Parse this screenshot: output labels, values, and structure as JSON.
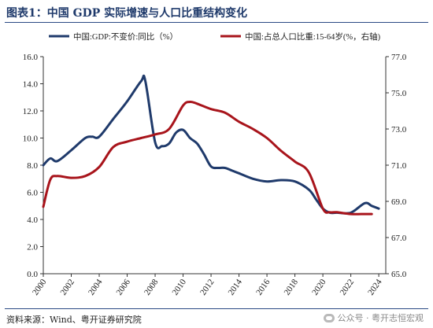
{
  "figure_title": "图表1：中国 GDP 实际增速与人口比重结构变化",
  "source_text": "资料来源：Wind、粤开证券研究院",
  "watermark_text": "公众号 · 粤开志恒宏观",
  "colors": {
    "series1": "#1f3a6b",
    "series2": "#a8141b",
    "title": "#1f3a6b"
  },
  "chart_data": {
    "type": "line",
    "grid": false,
    "legend_position": "top",
    "x_ticks": [
      "2000",
      "2002",
      "2004",
      "2006",
      "2008",
      "2010",
      "2012",
      "2014",
      "2016",
      "2018",
      "2020",
      "2022",
      "2024"
    ],
    "y_left": {
      "ticks": [
        "0.0",
        "2.0",
        "4.0",
        "6.0",
        "8.0",
        "10.0",
        "12.0",
        "14.0",
        "16.0"
      ],
      "range": [
        0,
        16
      ]
    },
    "y_right": {
      "ticks": [
        "65.0",
        "67.0",
        "69.0",
        "71.0",
        "73.0",
        "75.0",
        "77.0"
      ],
      "range": [
        65,
        77
      ]
    },
    "xlim": [
      2000,
      2024.5
    ],
    "series": [
      {
        "name": "中国:GDP:不变价:同比（%）",
        "axis": "left",
        "x": [
          2000,
          2000.5,
          2001,
          2002,
          2003,
          2003.5,
          2004,
          2005,
          2006,
          2007,
          2007.3,
          2008,
          2008.5,
          2009,
          2009.5,
          2010,
          2010.5,
          2011,
          2011.5,
          2012,
          2012.5,
          2013,
          2013.5,
          2014,
          2015,
          2016,
          2017,
          2018,
          2019,
          2019.5,
          2020,
          2020.5,
          2021,
          2022,
          2023,
          2023.5,
          2024
        ],
        "values": [
          8.0,
          8.5,
          8.3,
          9.1,
          10.0,
          10.1,
          10.1,
          11.4,
          12.7,
          14.2,
          14.2,
          9.7,
          9.4,
          9.6,
          10.4,
          10.6,
          10.0,
          9.6,
          8.8,
          7.9,
          7.8,
          7.8,
          7.6,
          7.4,
          7.0,
          6.8,
          6.9,
          6.8,
          6.2,
          5.5,
          4.8,
          4.5,
          4.5,
          4.5,
          5.2,
          5.0,
          4.8
        ]
      },
      {
        "name": "中国:占总人口比重:15-64岁(%，右轴)",
        "axis": "right",
        "x": [
          2000,
          2000.5,
          2001,
          2002,
          2003,
          2004,
          2005,
          2006,
          2007,
          2008,
          2009,
          2010,
          2010.5,
          2011,
          2012,
          2013,
          2014,
          2015,
          2016,
          2017,
          2018,
          2019,
          2020,
          2020.5,
          2021,
          2022,
          2023,
          2023.5
        ],
        "values": [
          68.7,
          70.2,
          70.4,
          70.3,
          70.4,
          70.9,
          72.0,
          72.3,
          72.5,
          72.7,
          73.0,
          74.3,
          74.5,
          74.4,
          74.1,
          73.9,
          73.4,
          73.0,
          72.5,
          71.8,
          71.2,
          70.6,
          68.6,
          68.4,
          68.4,
          68.3,
          68.3,
          68.3
        ]
      }
    ]
  }
}
